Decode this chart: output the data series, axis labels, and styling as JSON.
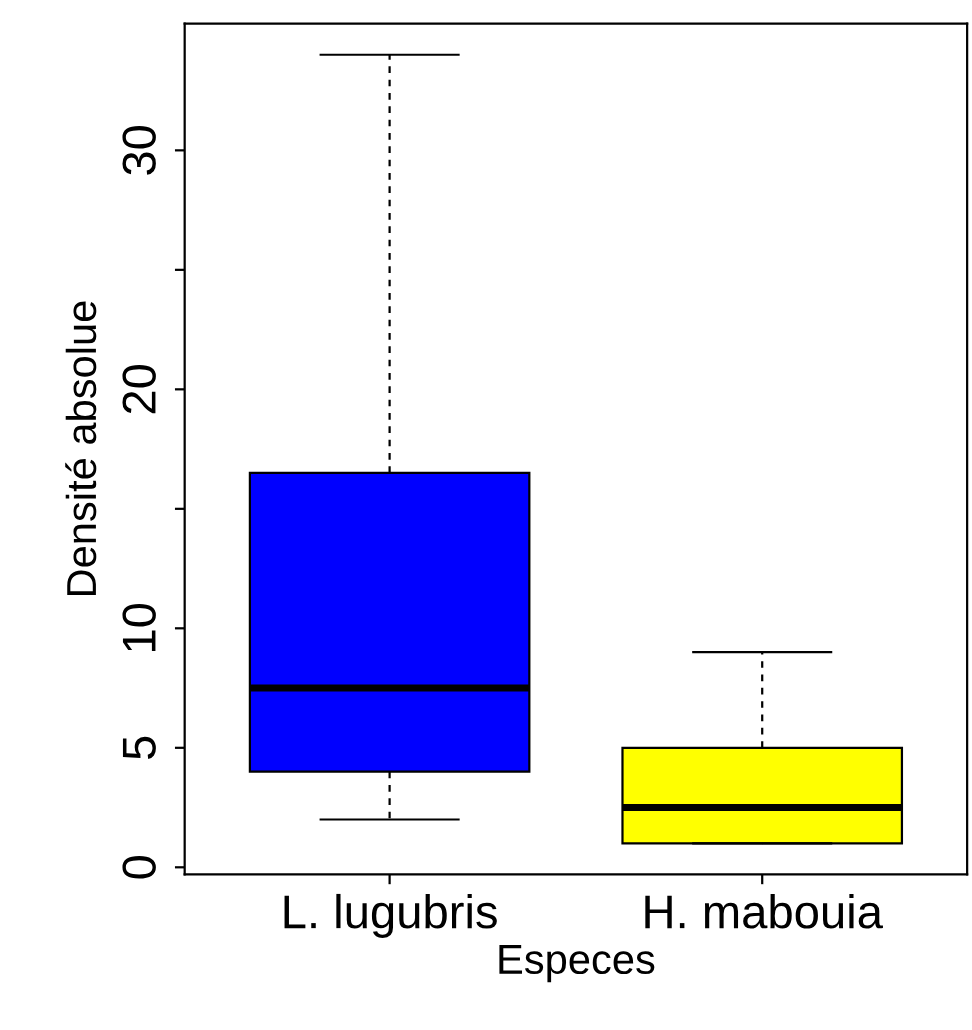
{
  "chart_data": {
    "type": "box",
    "xlabel": "Especes",
    "ylabel": "Densité absolue",
    "categories": [
      "L. lugubris",
      "H. mabouia"
    ],
    "colors": [
      "#0000ff",
      "#ffff00"
    ],
    "boxes": [
      {
        "low": 2,
        "q1": 4,
        "median": 7.5,
        "q3": 16.5,
        "high": 34
      },
      {
        "low": 1,
        "q1": 1,
        "median": 2.5,
        "q3": 5,
        "high": 9
      }
    ],
    "ylim": [
      -0.3,
      35.3
    ],
    "yticks": [
      0,
      5,
      10,
      {
        "value": 15,
        "label": null
      },
      20,
      {
        "value": 25,
        "label": null
      },
      30
    ],
    "grid": false,
    "legend": false
  }
}
